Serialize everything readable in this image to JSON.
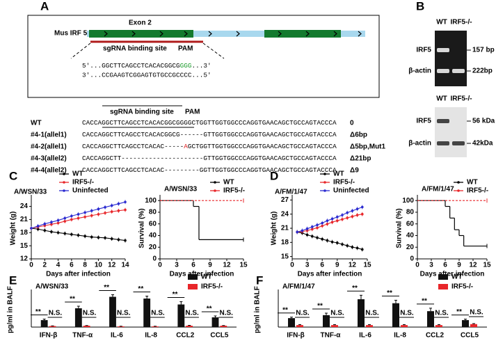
{
  "panel_a": {
    "label": "A",
    "gene": "Mus IRF 5",
    "exon": "Exon 2",
    "sgrna": "sgRNA binding site",
    "pam": "PAM",
    "seq_top": [
      "5'...GGCTTCAGCCTCACACGGCG",
      "GGG",
      "...3'"
    ],
    "seq_top_color": "#1a9a2a",
    "seq_bottom": "3'...CCGAAGTCGGAGTGTGCCGCCCC...5'",
    "alignment": {
      "header_sgrna": "sgRNA binding site",
      "header_pam": "PAM",
      "mark_color": "#e02020",
      "rows": [
        {
          "name": "WT",
          "seq": [
            "CACCAGGCTTCAGCCTCACACGGCGGGGCTGGTTGGTGGCCCAGGTGAACAGCTGCCAGTACCCA"
          ],
          "note": "0"
        },
        {
          "name": "#4-1(allel1)",
          "seq": [
            "CACCAGGCTTCAGCCTCACACGGCG------GTTGGTGGCCCAGGTGAACAGCTGCCAGTACCCA"
          ],
          "note": "Δ6bp"
        },
        {
          "name": "#4-2(allel1)",
          "seq": [
            "CACCAGGCTTCAGCCTCACAC-----",
            "A",
            "GCTGGTTGGTGGCCCAGGTGAACAGCTGCCAGTACCCA"
          ],
          "mark": 1,
          "note": "Δ5bp,Mut1"
        },
        {
          "name": "#4-3(allel2)",
          "seq": [
            "CACCAGGCTT---------------------GTTGGTGGCCCAGGTGAACAGCTGCCAGTACCCA"
          ],
          "note": "Δ21bp"
        },
        {
          "name": "#4-4(allel2)",
          "seq": [
            "CACCAGGCTTCAGCCTCACAC---------GGTTGGTGGCCCAGGTGAACAGCTGCCAGTACCCA"
          ],
          "note": "Δ9"
        }
      ]
    }
  },
  "panel_b": {
    "label": "B",
    "gels": [
      {
        "lanes": [
          "WT",
          "IRF5-/-"
        ],
        "rows": [
          {
            "name": "IRF5",
            "size": "157 bp"
          },
          {
            "name": "β-actin",
            "size": "222bp"
          }
        ]
      },
      {
        "lanes": [
          "WT",
          "IRF5-/-"
        ],
        "rows": [
          {
            "name": "IRF5",
            "size": "56 kDa"
          },
          {
            "name": "β-actin",
            "size": "42kDa"
          }
        ]
      }
    ]
  },
  "chart_data": [
    {
      "type": "line",
      "panel_label": "C",
      "title": "A/WSN/33",
      "x_label": "Days after infection",
      "y_label": "Weight (g)",
      "x": [
        0,
        1,
        2,
        3,
        4,
        5,
        6,
        7,
        8,
        9,
        10,
        11,
        12,
        13,
        14
      ],
      "xlim": [
        0,
        14
      ],
      "xticks": [
        0,
        2,
        4,
        6,
        8,
        10,
        12,
        14
      ],
      "ylim": [
        12,
        26
      ],
      "yticks": [
        12,
        15,
        18,
        21,
        24
      ],
      "legend": "above",
      "series": [
        {
          "name": "WT",
          "color": "#000000",
          "values": [
            19,
            18.8,
            18.5,
            18.2,
            18,
            17.8,
            17.6,
            17.4,
            17.2,
            17,
            16.9,
            16.8,
            16.6,
            16.4,
            16.2
          ]
        },
        {
          "name": "IRF5-/-",
          "color": "#e8262a",
          "values": [
            19,
            19.3,
            19.6,
            19.9,
            20.2,
            20.6,
            21,
            21.3,
            21.6,
            21.9,
            22.2,
            22.5,
            22.8,
            23,
            23.2
          ]
        },
        {
          "name": "Uninfected",
          "color": "#2a2ad0",
          "values": [
            19,
            19.5,
            20,
            20.4,
            20.8,
            21.3,
            21.8,
            22.2,
            22.6,
            23,
            23.4,
            23.8,
            24.2,
            24.6,
            25
          ]
        }
      ]
    },
    {
      "type": "survival",
      "title": "A/WSN/33",
      "x_label": "Days after infection",
      "y_label": "Survival (%)",
      "xlim": [
        0,
        15
      ],
      "xticks": [
        0,
        3,
        6,
        9,
        12,
        15
      ],
      "ylim": [
        0,
        105
      ],
      "yticks": [
        0,
        20,
        40,
        60,
        80,
        100
      ],
      "legend": "upper-right",
      "series": [
        {
          "name": "WT",
          "color": "#000000",
          "x": [
            0,
            6,
            7,
            15
          ],
          "values": [
            100,
            90,
            33,
            33
          ]
        },
        {
          "name": "IRF5-/-",
          "color": "#e8262a",
          "x": [
            0,
            15
          ],
          "values": [
            100,
            100
          ]
        }
      ]
    },
    {
      "type": "line",
      "panel_label": "D",
      "title": "A/FM/1/47",
      "x_label": "Days after infection",
      "y_label": "Weight (g)",
      "x": [
        1,
        2,
        3,
        4,
        5,
        6,
        7,
        8,
        9,
        10,
        11,
        12,
        13,
        14
      ],
      "xlim": [
        0,
        15
      ],
      "xticks": [
        0,
        3,
        6,
        9,
        12,
        15
      ],
      "ylim": [
        14.5,
        27.5
      ],
      "yticks": [
        15,
        18,
        21,
        24,
        27
      ],
      "legend": "above",
      "series": [
        {
          "name": "WT",
          "color": "#000000",
          "values": [
            20.2,
            20,
            19.6,
            19.3,
            19,
            18.7,
            18.4,
            18.1,
            17.9,
            17.6,
            17.3,
            17,
            16.8,
            16.5
          ]
        },
        {
          "name": "IRF5-/-",
          "color": "#e8262a",
          "values": [
            20.2,
            20.3,
            20.5,
            20.8,
            21.1,
            21.5,
            21.9,
            22.3,
            22.6,
            22.9,
            23.2,
            23.5,
            23.8,
            24
          ]
        },
        {
          "name": "Uninfected",
          "color": "#2a2ad0",
          "values": [
            20.2,
            20.5,
            20.9,
            21.3,
            21.7,
            22.1,
            22.6,
            23,
            23.4,
            23.8,
            24.3,
            24.7,
            25.1,
            25.5
          ]
        }
      ]
    },
    {
      "type": "survival",
      "title": "A/FM/1/47",
      "x_label": "Days after infection",
      "y_label": "Survival (%)",
      "xlim": [
        0,
        15
      ],
      "xticks": [
        0,
        3,
        6,
        9,
        12,
        15
      ],
      "ylim": [
        0,
        105
      ],
      "yticks": [
        0,
        20,
        40,
        60,
        80,
        100
      ],
      "legend": "upper-right",
      "series": [
        {
          "name": "WT",
          "color": "#000000",
          "x": [
            0,
            6,
            7,
            8,
            9,
            10,
            15
          ],
          "values": [
            100,
            90,
            70,
            50,
            40,
            22,
            22
          ]
        },
        {
          "name": "IRF5-/-",
          "color": "#e8262a",
          "x": [
            0,
            15
          ],
          "values": [
            100,
            100
          ]
        }
      ]
    },
    {
      "type": "bar",
      "panel_label": "E",
      "title": "A/WSN/33",
      "y_label": "pg/ml in BALF",
      "ylim": [
        0,
        1000
      ],
      "categories": [
        "IFN-β",
        "TNF-α",
        "IL-6",
        "IL-8",
        "CCL2",
        "CCL5"
      ],
      "annotations": [
        "**",
        "N.S."
      ],
      "legend": "upper-right",
      "series": [
        {
          "name": "WT",
          "color": "#111111",
          "values": [
            200,
            540,
            870,
            820,
            650,
            280
          ],
          "errors": [
            30,
            60,
            60,
            70,
            80,
            40
          ]
        },
        {
          "name": "IRF5-/-",
          "color": "#e8262a",
          "values": [
            30,
            40,
            20,
            20,
            40,
            40
          ],
          "errors": [
            5,
            5,
            5,
            5,
            10,
            5
          ]
        }
      ]
    },
    {
      "type": "bar",
      "panel_label": "F",
      "title": "A/FM/1/47",
      "y_label": "pg/ml in BALF",
      "ylim": [
        0,
        35
      ],
      "categories": [
        "IFN-β",
        "TNF-α",
        "IL-6",
        "IL-8",
        "CCL2",
        "CCL5"
      ],
      "annotations": [
        "**",
        "N.S."
      ],
      "legend": "upper-right",
      "series": [
        {
          "name": "WT",
          "color": "#111111",
          "values": [
            9,
            12,
            28,
            24,
            16,
            7
          ],
          "errors": [
            1,
            2,
            4,
            3,
            3,
            1
          ]
        },
        {
          "name": "IRF5-/-",
          "color": "#e8262a",
          "values": [
            2,
            2,
            2,
            2,
            2,
            3
          ],
          "errors": [
            0.5,
            0.5,
            0.5,
            0.5,
            0.5,
            0.5
          ]
        }
      ]
    }
  ]
}
